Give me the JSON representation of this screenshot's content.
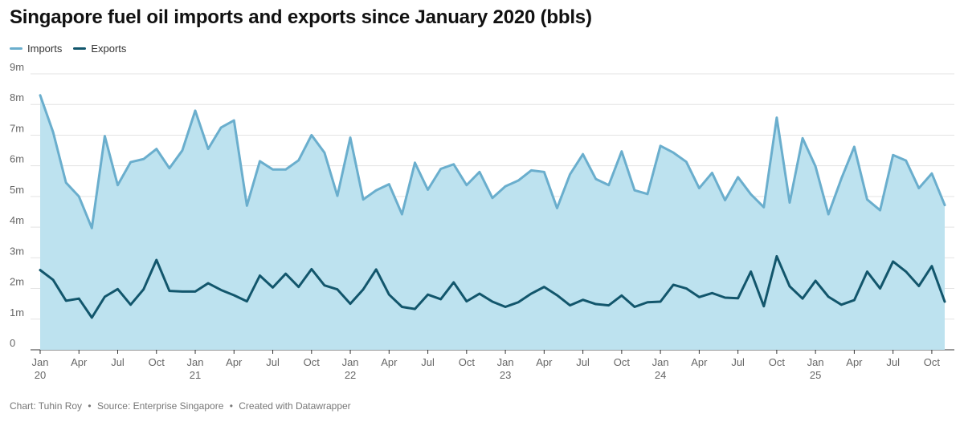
{
  "chart_data": {
    "type": "area",
    "title": "Singapore fuel oil imports and exports since January 2020 (bbls)",
    "x_start": "2020-01",
    "x_end": "2025-11",
    "ylim": [
      0,
      9
    ],
    "y_ticks": [
      0,
      1,
      2,
      3,
      4,
      5,
      6,
      7,
      8,
      9
    ],
    "y_tick_labels": [
      "0",
      "1m",
      "2m",
      "3m",
      "4m",
      "5m",
      "6m",
      "7m",
      "8m",
      "9m"
    ],
    "x_ticks": [
      {
        "index": 0,
        "month": "Jan",
        "year": "20"
      },
      {
        "index": 3,
        "month": "Apr"
      },
      {
        "index": 6,
        "month": "Jul"
      },
      {
        "index": 9,
        "month": "Oct"
      },
      {
        "index": 12,
        "month": "Jan",
        "year": "21"
      },
      {
        "index": 15,
        "month": "Apr"
      },
      {
        "index": 18,
        "month": "Jul"
      },
      {
        "index": 21,
        "month": "Oct"
      },
      {
        "index": 24,
        "month": "Jan",
        "year": "22"
      },
      {
        "index": 27,
        "month": "Apr"
      },
      {
        "index": 30,
        "month": "Jul"
      },
      {
        "index": 33,
        "month": "Oct"
      },
      {
        "index": 36,
        "month": "Jan",
        "year": "23"
      },
      {
        "index": 39,
        "month": "Apr"
      },
      {
        "index": 42,
        "month": "Jul"
      },
      {
        "index": 45,
        "month": "Oct"
      },
      {
        "index": 48,
        "month": "Jan",
        "year": "24"
      },
      {
        "index": 51,
        "month": "Apr"
      },
      {
        "index": 54,
        "month": "Jul"
      },
      {
        "index": 57,
        "month": "Oct"
      },
      {
        "index": 60,
        "month": "Jan",
        "year": "25"
      },
      {
        "index": 63,
        "month": "Apr"
      },
      {
        "index": 66,
        "month": "Jul"
      },
      {
        "index": 69,
        "month": "Oct"
      }
    ],
    "series": [
      {
        "name": "Imports",
        "color": "#6aaecd",
        "fill": "#bde2ef",
        "values": [
          8.3,
          7.1,
          5.45,
          5.0,
          3.97,
          6.97,
          5.37,
          6.12,
          6.22,
          6.55,
          5.92,
          6.5,
          7.8,
          6.55,
          7.25,
          7.48,
          4.7,
          6.15,
          5.88,
          5.88,
          6.18,
          7.0,
          6.43,
          5.02,
          6.92,
          4.9,
          5.2,
          5.4,
          4.42,
          6.1,
          5.22,
          5.9,
          6.05,
          5.37,
          5.8,
          4.95,
          5.33,
          5.52,
          5.85,
          5.8,
          4.62,
          5.72,
          6.38,
          5.57,
          5.37,
          6.47,
          5.2,
          5.08,
          6.65,
          6.43,
          6.13,
          5.27,
          5.77,
          4.88,
          5.63,
          5.07,
          4.65,
          7.57,
          4.8,
          6.9,
          5.98,
          4.42,
          5.58,
          6.62,
          4.9,
          4.55,
          6.35,
          6.17,
          5.27,
          5.75,
          4.72
        ]
      },
      {
        "name": "Exports",
        "color": "#12566c",
        "values": [
          2.6,
          2.28,
          1.6,
          1.67,
          1.05,
          1.73,
          1.98,
          1.47,
          1.97,
          2.93,
          1.92,
          1.9,
          1.9,
          2.17,
          1.95,
          1.78,
          1.58,
          2.42,
          2.03,
          2.48,
          2.05,
          2.63,
          2.1,
          1.97,
          1.5,
          1.97,
          2.62,
          1.8,
          1.4,
          1.33,
          1.8,
          1.65,
          2.2,
          1.58,
          1.83,
          1.57,
          1.4,
          1.55,
          1.83,
          2.05,
          1.78,
          1.45,
          1.63,
          1.49,
          1.45,
          1.77,
          1.4,
          1.55,
          1.57,
          2.12,
          2.0,
          1.72,
          1.85,
          1.7,
          1.68,
          2.55,
          1.42,
          3.05,
          2.07,
          1.67,
          2.25,
          1.73,
          1.47,
          1.62,
          2.55,
          2.0,
          2.88,
          2.55,
          2.08,
          2.73,
          1.57
        ]
      }
    ],
    "footer": {
      "chart_by": "Chart: Tuhin Roy",
      "source": "Source: Enterprise Singapore",
      "created": "Created with Datawrapper",
      "separator": "•"
    }
  }
}
